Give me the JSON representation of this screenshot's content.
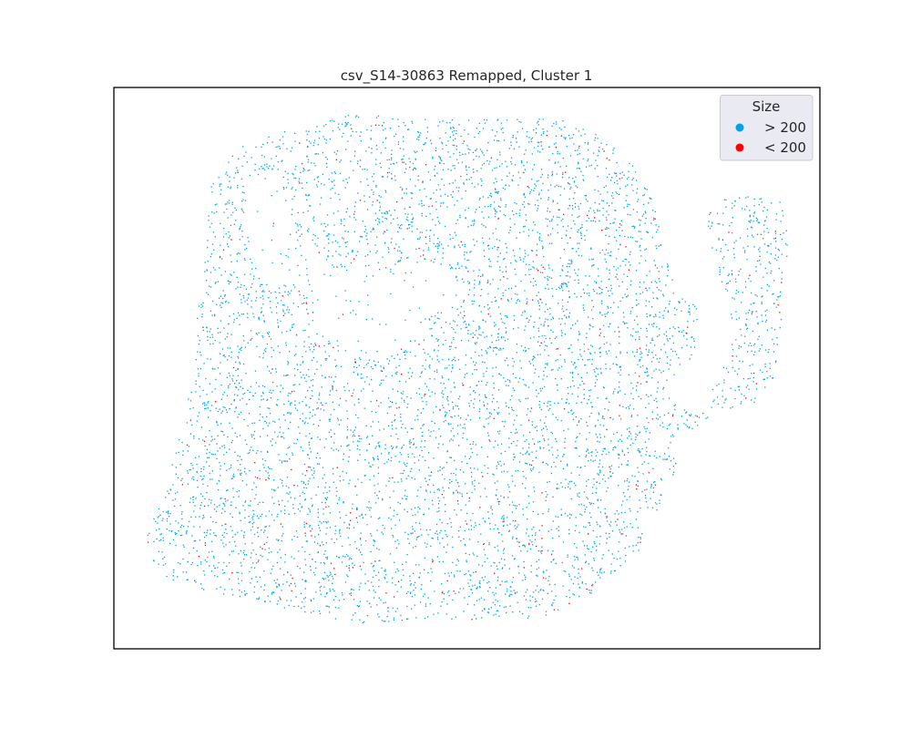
{
  "chart_data": {
    "type": "scatter",
    "title": "csv_S14-30863 Remapped, Cluster 1",
    "xlabel": "",
    "ylabel": "",
    "axes_ticks": false,
    "grid": false,
    "legend_placement": "top-right",
    "legend": {
      "title": "Size",
      "entries": [
        {
          "label": "> 200",
          "color": "#00a2e8"
        },
        {
          "label": "< 200",
          "color": "#ff0000"
        }
      ]
    },
    "series": [
      {
        "name": "> 200",
        "color": "#00a2e8"
      },
      {
        "name": "< 200",
        "color": "#ff0000"
      }
    ]
  }
}
